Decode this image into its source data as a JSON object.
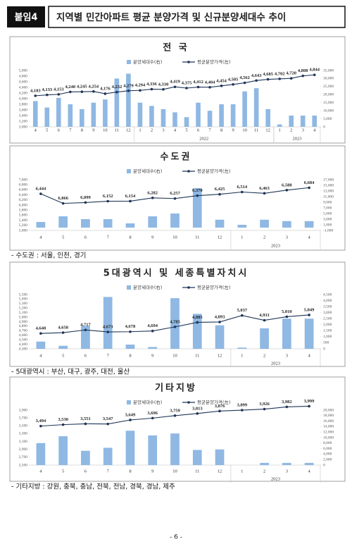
{
  "header": {
    "badge": "붙임4",
    "title": "지역별 민간아파트 평균 분양가격 및 신규분양세대수 추이"
  },
  "footer": "- 6 -",
  "chart_data": [
    {
      "type": "bar_line",
      "title": "전 국",
      "categories": [
        "4",
        "5",
        "6",
        "7",
        "8",
        "9",
        "10",
        "11",
        "12",
        "1",
        "2",
        "3",
        "4",
        "5",
        "6",
        "7",
        "8",
        "9",
        "10",
        "11",
        "12",
        "1",
        "2",
        "3",
        "4"
      ],
      "x_groups": [
        {
          "label": "2022",
          "start": 9,
          "count": 12
        },
        {
          "label": "2023",
          "start": 21,
          "count": 4
        }
      ],
      "series": [
        {
          "name": "분양세대수(右)",
          "type": "bar",
          "axis": "y2",
          "color": "#8fb8e3",
          "values": [
            16000,
            12000,
            18000,
            14000,
            11000,
            15000,
            17000,
            30000,
            33000,
            15000,
            13000,
            11000,
            9000,
            6000,
            15000,
            10000,
            14000,
            14000,
            22000,
            24000,
            11000,
            1500,
            7000,
            7000,
            7000
          ]
        },
        {
          "name": "평균분양가격(左)",
          "type": "line",
          "axis": "y",
          "color": "#1f3556",
          "values": [
            4103,
            4133,
            4153,
            4240,
            4245,
            4254,
            4176,
            4232,
            4279,
            4294,
            4336,
            4330,
            4419,
            4375,
            4412,
            4404,
            4454,
            4505,
            4562,
            4643,
            4685,
            4702,
            4720,
            4808,
            4844
          ],
          "value_labels": [
            "4,103",
            "4,133",
            "4,153",
            "4,240",
            "4,245",
            "4,254",
            "4,176",
            "4,232",
            "4,279",
            "4,294",
            "4,336",
            "4,330",
            "4,419",
            "4,375",
            "4,412",
            "4,404",
            "4,454",
            "4,505",
            "4,562",
            "4,643",
            "4,685",
            "4,702",
            "4,720",
            "4,808",
            "4,844"
          ]
        }
      ],
      "ylim": [
        3000,
        5000
      ],
      "yticks": [
        {
          "value": 3000,
          "label": "3,000"
        },
        {
          "value": 3200,
          "label": "3,200"
        },
        {
          "value": 3400,
          "label": "3,400"
        },
        {
          "value": 3600,
          "label": "3,600"
        },
        {
          "value": 3800,
          "label": "3,800"
        },
        {
          "value": 4000,
          "label": "4,000"
        },
        {
          "value": 4200,
          "label": "4,200"
        },
        {
          "value": 4400,
          "label": "4,400"
        },
        {
          "value": 4600,
          "label": "4,600"
        },
        {
          "value": 4800,
          "label": "4,800"
        },
        {
          "value": 5000,
          "label": "5,000"
        }
      ],
      "y2lim": [
        0,
        35000
      ],
      "y2ticks": [
        0,
        {
          "value": 5000,
          "label": "5,000"
        },
        {
          "value": 10000,
          "label": "10,000"
        },
        {
          "value": 15000,
          "label": "15,000"
        },
        {
          "value": 20000,
          "label": "20,000"
        },
        {
          "value": 25000,
          "label": "25,000"
        },
        {
          "value": 30000,
          "label": "30,000"
        },
        {
          "value": 35000,
          "label": "35,000"
        }
      ]
    },
    {
      "type": "bar_line",
      "title": "수도권",
      "note": "- 수도권 : 서울, 인천, 경기",
      "categories": [
        "4",
        "5",
        "6",
        "7",
        "8",
        "9",
        "10",
        "11",
        "12",
        "1",
        "2",
        "3",
        "4"
      ],
      "x_groups": [
        {
          "label": "2023",
          "start": 9,
          "count": 4
        }
      ],
      "series": [
        {
          "name": "분양세대수(右)",
          "type": "bar",
          "axis": "y2",
          "color": "#8fb8e3",
          "values": [
            2000,
            4000,
            3000,
            3000,
            1500,
            4000,
            5000,
            14000,
            2800,
            1000,
            2800,
            2300,
            2300
          ]
        },
        {
          "name": "평균분양가격(左)",
          "type": "line",
          "axis": "y",
          "color": "#1f3556",
          "values": [
            6444,
            6066,
            6099,
            6152,
            6154,
            6282,
            6257,
            6370,
            6425,
            6514,
            6463,
            6588,
            6684
          ],
          "value_labels": [
            "6,444",
            "6,066",
            "6,099",
            "6,152",
            "6,154",
            "6,282",
            "6,257",
            "6,370",
            "6,425",
            "6,514",
            "6,463",
            "6,588",
            "6,684"
          ]
        }
      ],
      "ylim": [
        5000,
        7000
      ],
      "yticks": [
        {
          "value": 5000,
          "label": "5,000"
        },
        {
          "value": 5200,
          "label": "5,200"
        },
        {
          "value": 5400,
          "label": "5,400"
        },
        {
          "value": 5600,
          "label": "5,600"
        },
        {
          "value": 5800,
          "label": "5,800"
        },
        {
          "value": 6000,
          "label": "6,000"
        },
        {
          "value": 6200,
          "label": "6,200"
        },
        {
          "value": 6400,
          "label": "6,400"
        },
        {
          "value": 6600,
          "label": "6,600"
        },
        {
          "value": 6800,
          "label": "6,800"
        },
        {
          "value": 7000,
          "label": "7,000"
        }
      ],
      "y2lim": [
        -1000,
        17000
      ],
      "y2ticks": [
        {
          "value": -1000,
          "label": "-1,000"
        },
        {
          "value": 1000,
          "label": "1,000"
        },
        {
          "value": 3000,
          "label": "3,000"
        },
        {
          "value": 5000,
          "label": "5,000"
        },
        {
          "value": 7000,
          "label": "7,000"
        },
        {
          "value": 9000,
          "label": "9,000"
        },
        {
          "value": 11000,
          "label": "11,000"
        },
        {
          "value": 13000,
          "label": "13,000"
        },
        {
          "value": 15000,
          "label": "15,000"
        },
        {
          "value": 17000,
          "label": "17,000"
        }
      ]
    },
    {
      "type": "bar_line",
      "title": "5대광역시 및 세종특별자치시",
      "note": "- 5대광역시 : 부산, 대구, 광주, 대전, 울산",
      "categories": [
        "4",
        "5",
        "6",
        "7",
        "8",
        "9",
        "10",
        "11",
        "12",
        "1",
        "2",
        "3",
        "4"
      ],
      "x_groups": [
        {
          "label": "2023",
          "start": 9,
          "count": 4
        }
      ],
      "series": [
        {
          "name": "분양세대수(右)",
          "type": "bar",
          "axis": "y2",
          "color": "#8fb8e3",
          "values": [
            600,
            250,
            1900,
            4300,
            350,
            150,
            4200,
            2900,
            1950,
            100,
            1700,
            2500,
            2500
          ]
        },
        {
          "name": "평균분양가격(左)",
          "type": "line",
          "axis": "y",
          "color": "#1f3556",
          "values": [
            4640,
            4658,
            4717,
            4673,
            4678,
            4694,
            4785,
            4885,
            4893,
            5037,
            4931,
            5010,
            5049
          ],
          "value_labels": [
            "4,640",
            "4,658",
            "4,717",
            "4,673",
            "4,678",
            "4,694",
            "4,785",
            "4,885",
            "4,893",
            "5,037",
            "4,931",
            "5,010",
            "5,049"
          ]
        }
      ],
      "ylim": [
        4300,
        5500
      ],
      "yticks": [
        {
          "value": 4300,
          "label": "4,300"
        },
        {
          "value": 4400,
          "label": "4,400"
        },
        {
          "value": 4500,
          "label": "4,500"
        },
        {
          "value": 4600,
          "label": "4,600"
        },
        {
          "value": 4700,
          "label": "4,700"
        },
        {
          "value": 4800,
          "label": "4,800"
        },
        {
          "value": 4900,
          "label": "4,900"
        },
        {
          "value": 5000,
          "label": "5,000"
        },
        {
          "value": 5100,
          "label": "5,100"
        },
        {
          "value": 5200,
          "label": "5,200"
        },
        {
          "value": 5300,
          "label": "5,300"
        },
        {
          "value": 5400,
          "label": "5,400"
        },
        {
          "value": 5500,
          "label": "5,500"
        }
      ],
      "y2lim": [
        0,
        4500
      ],
      "y2ticks": [
        0,
        500,
        {
          "value": 1000,
          "label": "1,000"
        },
        {
          "value": 1500,
          "label": "1,500"
        },
        {
          "value": 2000,
          "label": "2,000"
        },
        {
          "value": 2500,
          "label": "2,500"
        },
        {
          "value": 3000,
          "label": "3,000"
        },
        {
          "value": 3500,
          "label": "3,500"
        },
        {
          "value": 4000,
          "label": "4,000"
        },
        {
          "value": 4500,
          "label": "4,500"
        }
      ]
    },
    {
      "type": "bar_line",
      "title": "기타지방",
      "note": "- 기타지방 : 강원, 충북, 충남, 전북, 전남, 경북, 경남, 제주",
      "categories": [
        "4",
        "5",
        "6",
        "7",
        "8",
        "9",
        "10",
        "11",
        "12",
        "1",
        "2",
        "3",
        "4"
      ],
      "x_groups": [
        {
          "label": "2023",
          "start": 9,
          "count": 4
        }
      ],
      "series": [
        {
          "name": "분양세대수(右)",
          "type": "bar",
          "axis": "y2",
          "color": "#8fb8e3",
          "values": [
            8000,
            10500,
            5200,
            6300,
            12500,
            10800,
            11500,
            5500,
            5700,
            0,
            800,
            800,
            800
          ]
        },
        {
          "name": "평균분양가격(左)",
          "type": "line",
          "axis": "y",
          "color": "#1f3556",
          "values": [
            3494,
            3530,
            3551,
            3547,
            3649,
            3696,
            3759,
            3813,
            3876,
            3899,
            3926,
            3982,
            3999
          ],
          "value_labels": [
            "3,494",
            "3,530",
            "3,551",
            "3,547",
            "3,649",
            "3,696",
            "3,759",
            "3,813",
            "3,876",
            "3,899",
            "3,926",
            "3,982",
            "3,999"
          ]
        }
      ],
      "ylim": [
        2500,
        3900
      ],
      "yticks": [
        {
          "value": 2500,
          "label": "2,500"
        },
        {
          "value": 2700,
          "label": "2,700"
        },
        {
          "value": 2900,
          "label": "2,900"
        },
        {
          "value": 3100,
          "label": "3,100"
        },
        {
          "value": 3300,
          "label": "3,300"
        },
        {
          "value": 3500,
          "label": "3,500"
        },
        {
          "value": 3700,
          "label": "3,700"
        },
        {
          "value": 3900,
          "label": "3,900"
        }
      ],
      "y2lim": [
        0,
        20000
      ],
      "y2ticks": [
        0,
        {
          "value": 2000,
          "label": "2,000"
        },
        {
          "value": 4000,
          "label": "4,000"
        },
        {
          "value": 6000,
          "label": "6,000"
        },
        {
          "value": 8000,
          "label": "8,000"
        },
        {
          "value": 10000,
          "label": "10,000"
        },
        {
          "value": 12000,
          "label": "12,000"
        },
        {
          "value": 14000,
          "label": "14,000"
        },
        {
          "value": 16000,
          "label": "16,000"
        },
        {
          "value": 18000,
          "label": "18,000"
        },
        {
          "value": 20000,
          "label": "20,000"
        }
      ]
    }
  ]
}
